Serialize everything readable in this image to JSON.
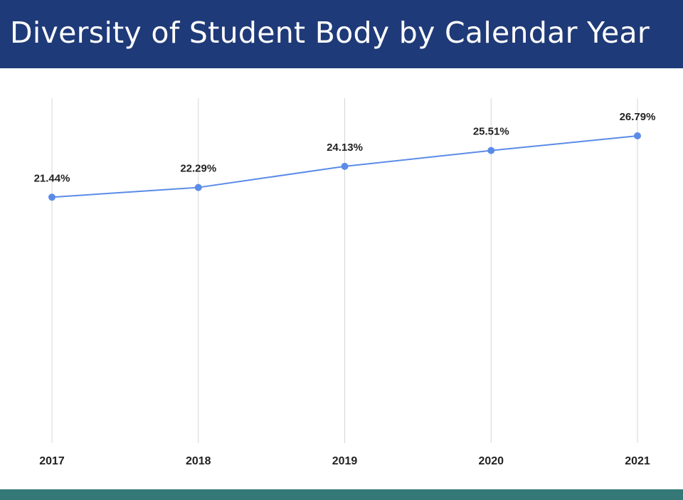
{
  "header": {
    "title": "Diversity of Student Body by Calendar Year",
    "background_color": "#1f3a78",
    "text_color": "#ffffff"
  },
  "footer": {
    "bar_color": "#347877"
  },
  "chart_data": {
    "type": "line",
    "title": "Diversity of Student Body by Calendar Year",
    "xlabel": "",
    "ylabel": "",
    "categories": [
      "2017",
      "2018",
      "2019",
      "2020",
      "2021"
    ],
    "series": [
      {
        "name": "Diversity of Student Body",
        "values": [
          21.44,
          22.29,
          24.13,
          25.51,
          26.79
        ],
        "data_labels": [
          "21.44%",
          "22.29%",
          "24.13%",
          "25.51%",
          "26.79%"
        ],
        "color": "#5b8be8"
      }
    ],
    "ylim": [
      0,
      26.79
    ],
    "grid": "vertical",
    "legend": "none"
  }
}
